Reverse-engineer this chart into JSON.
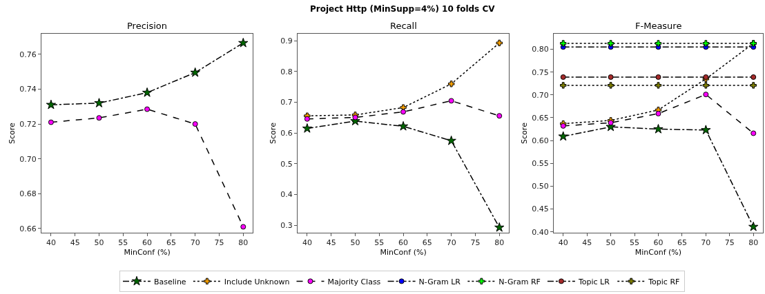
{
  "chart_data": [
    {
      "type": "line",
      "title": "Precision",
      "xlabel": "MinConf (%)",
      "ylabel": "Score",
      "annotations": [
        "Project Http (MinSupp=4%) 10 folds CV"
      ],
      "x": [
        40,
        50,
        60,
        70,
        80
      ],
      "xlim": [
        38,
        82
      ],
      "xticks": [
        40,
        45,
        50,
        55,
        60,
        65,
        70,
        75,
        80
      ],
      "ylim": [
        0.6576,
        0.7718
      ],
      "yticks": [
        {
          "value": 0.66,
          "label": "0.66"
        },
        {
          "value": 0.68,
          "label": "0.68"
        },
        {
          "value": 0.7,
          "label": "0.70"
        },
        {
          "value": 0.72,
          "label": "0.72"
        },
        {
          "value": 0.74,
          "label": "0.74"
        },
        {
          "value": 0.76,
          "label": "0.76"
        }
      ],
      "legend": "bottom",
      "series": [
        {
          "name": "Baseline",
          "color": "#006400",
          "marker": "star",
          "line_style": "dashdot",
          "values": [
            0.731,
            0.732,
            0.738,
            0.7495,
            0.7665
          ]
        },
        {
          "name": "Majority Class",
          "color": "#ff00ff",
          "marker": "circle",
          "line_style": "dashed",
          "values": [
            0.721,
            0.7235,
            0.7285,
            0.72,
            0.661
          ]
        }
      ]
    },
    {
      "type": "line",
      "title": "Recall",
      "xlabel": "MinConf (%)",
      "ylabel": "Score",
      "x": [
        40,
        50,
        60,
        70,
        80
      ],
      "xlim": [
        38,
        82
      ],
      "xticks": [
        40,
        45,
        50,
        55,
        60,
        65,
        70,
        75,
        80
      ],
      "ylim": [
        0.276,
        0.923
      ],
      "yticks": [
        0.3,
        0.4,
        0.5,
        0.6,
        0.7,
        0.8,
        0.9
      ],
      "legend": "bottom",
      "series": [
        {
          "name": "Baseline",
          "color": "#006400",
          "marker": "star",
          "line_style": "dashdot",
          "values": [
            0.615,
            0.639,
            0.622,
            0.575,
            0.293
          ]
        },
        {
          "name": "Include Unknown",
          "color": "#ffa500",
          "marker": "cross",
          "line_style": "dotted",
          "values": [
            0.656,
            0.659,
            0.683,
            0.76,
            0.893
          ]
        },
        {
          "name": "Majority Class",
          "color": "#ff00ff",
          "marker": "circle",
          "line_style": "dashed",
          "values": [
            0.646,
            0.651,
            0.669,
            0.705,
            0.656
          ]
        }
      ]
    },
    {
      "type": "line",
      "title": "F-Measure",
      "xlabel": "MinConf (%)",
      "ylabel": "Score",
      "x": [
        40,
        50,
        60,
        70,
        80
      ],
      "xlim": [
        38,
        82
      ],
      "xticks": [
        40,
        45,
        50,
        55,
        60,
        65,
        70,
        75,
        80
      ],
      "ylim": [
        0.398,
        0.834
      ],
      "yticks": [
        {
          "value": 0.4,
          "label": "0.40"
        },
        {
          "value": 0.45,
          "label": "0.45"
        },
        {
          "value": 0.5,
          "label": "0.50"
        },
        {
          "value": 0.55,
          "label": "0.55"
        },
        {
          "value": 0.6,
          "label": "0.60"
        },
        {
          "value": 0.65,
          "label": "0.65"
        },
        {
          "value": 0.7,
          "label": "0.70"
        },
        {
          "value": 0.75,
          "label": "0.75"
        },
        {
          "value": 0.8,
          "label": "0.80"
        }
      ],
      "legend": "bottom",
      "series": [
        {
          "name": "Baseline",
          "color": "#006400",
          "marker": "star",
          "line_style": "dashdot",
          "values": [
            0.609,
            0.63,
            0.625,
            0.623,
            0.411
          ]
        },
        {
          "name": "Include Unknown",
          "color": "#ffa500",
          "marker": "cross",
          "line_style": "dotted",
          "values": [
            0.637,
            0.644,
            0.667,
            0.735,
            0.813
          ]
        },
        {
          "name": "Majority Class",
          "color": "#ff00ff",
          "marker": "circle",
          "line_style": "dashed",
          "values": [
            0.632,
            0.639,
            0.659,
            0.701,
            0.616
          ]
        },
        {
          "name": "N-Gram LR",
          "color": "#0000ff",
          "marker": "circle",
          "line_style": "dashdot",
          "values": [
            0.805,
            0.805,
            0.805,
            0.805,
            0.805
          ]
        },
        {
          "name": "N-Gram RF",
          "color": "#00ff00",
          "marker": "cross",
          "line_style": "dotted",
          "values": [
            0.813,
            0.813,
            0.813,
            0.813,
            0.813
          ]
        },
        {
          "name": "Topic LR",
          "color": "#a52a2a",
          "marker": "circle",
          "line_style": "dashdot",
          "values": [
            0.739,
            0.739,
            0.739,
            0.739,
            0.739
          ]
        },
        {
          "name": "Topic RF",
          "color": "#808000",
          "marker": "cross",
          "line_style": "dotted",
          "values": [
            0.721,
            0.721,
            0.721,
            0.721,
            0.721
          ]
        }
      ]
    }
  ]
}
